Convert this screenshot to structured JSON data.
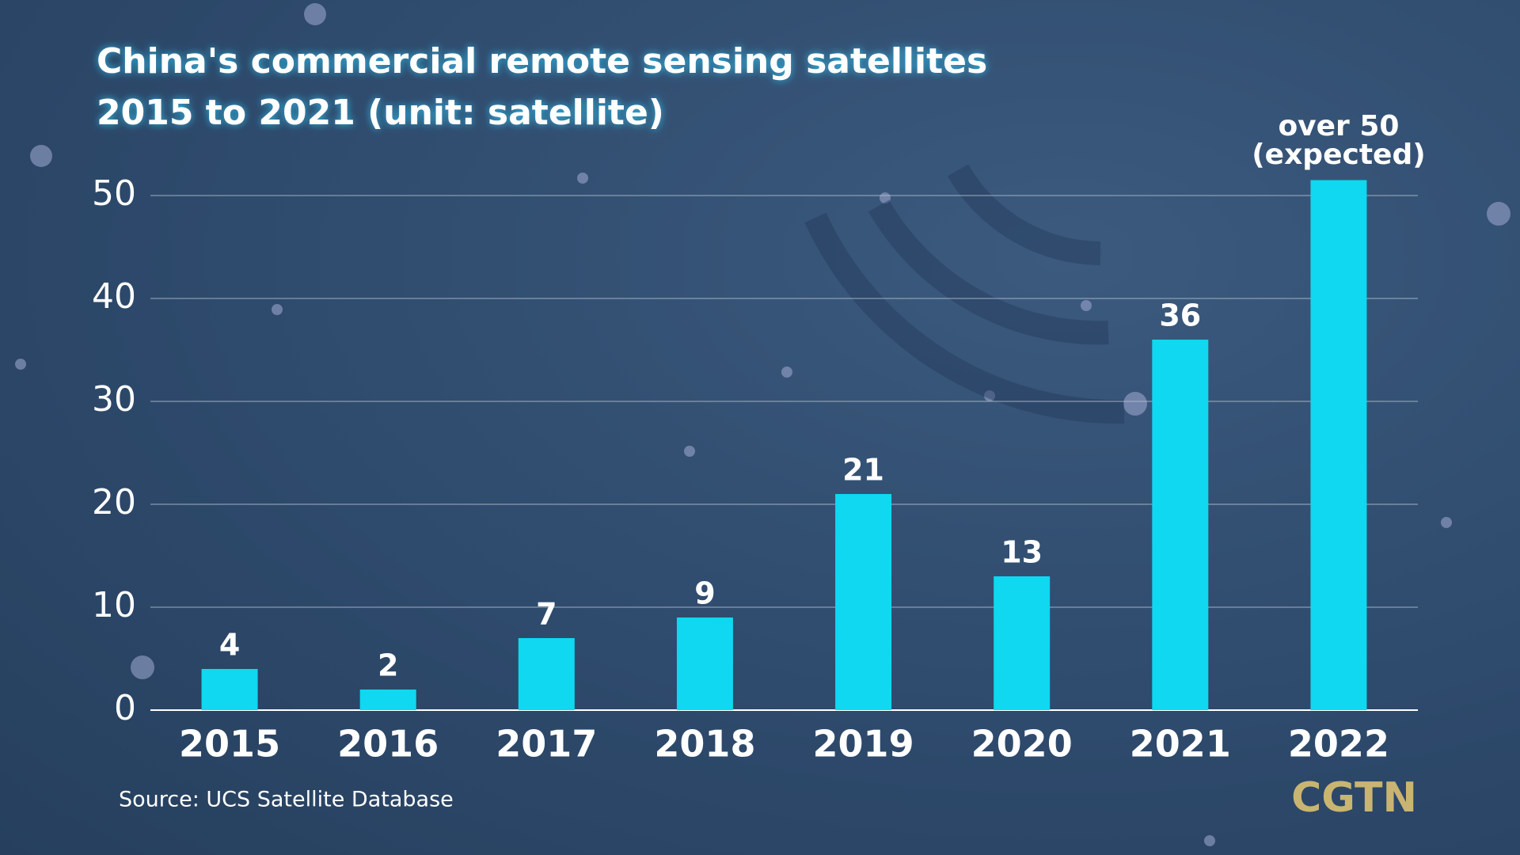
{
  "chart_data": {
    "type": "bar",
    "title": [
      "China's commercial remote sensing satellites",
      "2015 to 2021 (unit: satellite)"
    ],
    "categories": [
      "2015",
      "2016",
      "2017",
      "2018",
      "2019",
      "2020",
      "2021",
      "2022"
    ],
    "values": [
      4,
      2,
      7,
      9,
      21,
      13,
      36,
      51.5
    ],
    "value_labels": [
      "4",
      "2",
      "7",
      "9",
      "21",
      "13",
      "36",
      "over 50 (expected)"
    ],
    "color": "#0fd8f0",
    "ylim": [
      0,
      50
    ],
    "yticks": [
      0,
      10,
      20,
      30,
      40,
      50
    ],
    "grid": true,
    "source": "Source: UCS Satellite Database",
    "brand": "CGTN"
  }
}
